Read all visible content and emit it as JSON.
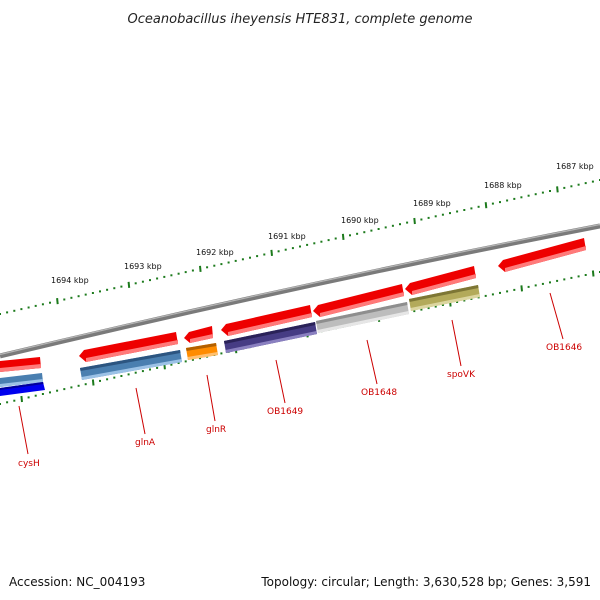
{
  "title": "Oceanobacillus iheyensis HTE831, complete genome",
  "accession": "Accession: NC_004193",
  "topology": "Topology: circular; Length: 3,630,528 bp; Genes: 3,591",
  "colors": {
    "red": "#ee0000",
    "blue": "#0000ee",
    "steel": "#4a7fb0",
    "orange": "#ff8c00",
    "purple": "#463c84",
    "gray": "#bdbdbd",
    "olive": "#b3aa5a",
    "tick": "#1c7a1c",
    "label": "#cc0000"
  },
  "kbp_labels": [
    "1687 kbp",
    "1688 kbp",
    "1689 kbp",
    "1690 kbp",
    "1691 kbp",
    "1692 kbp",
    "1693 kbp",
    "1694 kbp"
  ],
  "gene_labels": [
    "OB1646",
    "spoVK",
    "OB1648",
    "OB1649",
    "glnR",
    "glnA",
    "cysH"
  ]
}
